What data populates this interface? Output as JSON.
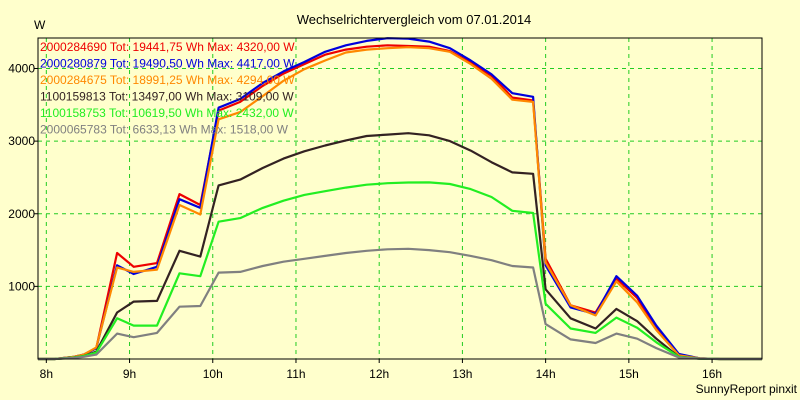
{
  "chart_data": {
    "type": "line",
    "title": "Wechselrichtervergleich vom 07.01.2014",
    "ylabel": "W",
    "xlabel": "",
    "footer": "SunnyReport pinxit",
    "ylim": [
      0,
      4420
    ],
    "xlim": [
      7.9,
      16.6
    ],
    "yticks": [
      1000,
      2000,
      3000,
      4000
    ],
    "xticks": [
      8,
      9,
      10,
      11,
      12,
      13,
      14,
      15,
      16
    ],
    "xtick_labels": [
      "8h",
      "9h",
      "10h",
      "11h",
      "12h",
      "13h",
      "14h",
      "15h",
      "16h"
    ],
    "grid": true,
    "background": "#FFFFCC",
    "legend_position": "top-left",
    "x": [
      7.9,
      8.1,
      8.33,
      8.45,
      8.6,
      8.85,
      9.05,
      9.33,
      9.6,
      9.85,
      10.07,
      10.33,
      10.6,
      10.85,
      11.1,
      11.35,
      11.6,
      11.85,
      12.1,
      12.35,
      12.6,
      12.85,
      13.1,
      13.35,
      13.6,
      13.85,
      14.0,
      14.3,
      14.6,
      14.85,
      15.1,
      15.33,
      15.6,
      15.85,
      16.1,
      16.6
    ],
    "series": [
      {
        "name": "2000284690",
        "legend": "2000284690 Tot: 19441,75 Wh Max: 4320,00 W",
        "color": "#EE0000",
        "values": [
          0,
          0,
          30,
          60,
          150,
          1460,
          1270,
          1320,
          2270,
          2120,
          3420,
          3540,
          3760,
          3930,
          4060,
          4190,
          4260,
          4300,
          4320,
          4310,
          4300,
          4240,
          4080,
          3900,
          3600,
          3560,
          1380,
          740,
          640,
          1110,
          840,
          420,
          60,
          10,
          0,
          0
        ]
      },
      {
        "name": "2000280879",
        "legend": "2000280879 Tot: 19490,50 Wh Max: 4417,00 W",
        "color": "#0000DD",
        "values": [
          0,
          0,
          30,
          60,
          150,
          1290,
          1170,
          1270,
          2200,
          2080,
          3460,
          3580,
          3800,
          3960,
          4090,
          4230,
          4320,
          4380,
          4417,
          4410,
          4370,
          4280,
          4110,
          3920,
          3660,
          3610,
          1290,
          710,
          620,
          1140,
          870,
          460,
          70,
          10,
          0,
          0
        ]
      },
      {
        "name": "2000284675",
        "legend": "2000284675 Tot: 18991,25 Wh Max: 4294,00 W",
        "color": "#FF8800",
        "values": [
          0,
          0,
          30,
          60,
          160,
          1260,
          1200,
          1230,
          2120,
          1990,
          3300,
          3400,
          3620,
          3830,
          3990,
          4110,
          4220,
          4260,
          4280,
          4294,
          4280,
          4230,
          4060,
          3860,
          3570,
          3540,
          1330,
          740,
          600,
          1070,
          780,
          400,
          50,
          10,
          0,
          0
        ]
      },
      {
        "name": "1100159813",
        "legend": "1100159813 Tot: 13497,00 Wh Max: 3109,00 W",
        "color": "#332222",
        "values": [
          0,
          0,
          20,
          40,
          100,
          640,
          790,
          800,
          1490,
          1410,
          2390,
          2470,
          2630,
          2760,
          2860,
          2940,
          3010,
          3070,
          3090,
          3109,
          3080,
          3000,
          2870,
          2710,
          2570,
          2550,
          960,
          560,
          420,
          690,
          520,
          280,
          30,
          5,
          0,
          0
        ]
      },
      {
        "name": "1100158753",
        "legend": "1100158753 Tot: 10619,50 Wh Max: 2432,00 W",
        "color": "#22EE22",
        "values": [
          0,
          0,
          20,
          40,
          90,
          560,
          460,
          460,
          1180,
          1140,
          1890,
          1940,
          2080,
          2180,
          2260,
          2310,
          2360,
          2400,
          2420,
          2430,
          2432,
          2410,
          2340,
          2230,
          2040,
          2010,
          760,
          420,
          360,
          570,
          430,
          230,
          30,
          5,
          0,
          0
        ]
      },
      {
        "name": "2000065783",
        "legend": "2000065783 Tot: 6633,13 Wh Max: 1518,00 W",
        "color": "#808080",
        "values": [
          0,
          0,
          15,
          30,
          60,
          350,
          300,
          360,
          720,
          730,
          1190,
          1200,
          1280,
          1340,
          1380,
          1420,
          1460,
          1490,
          1510,
          1518,
          1500,
          1470,
          1420,
          1360,
          1280,
          1260,
          480,
          270,
          220,
          350,
          280,
          150,
          20,
          5,
          0,
          0
        ]
      }
    ]
  }
}
